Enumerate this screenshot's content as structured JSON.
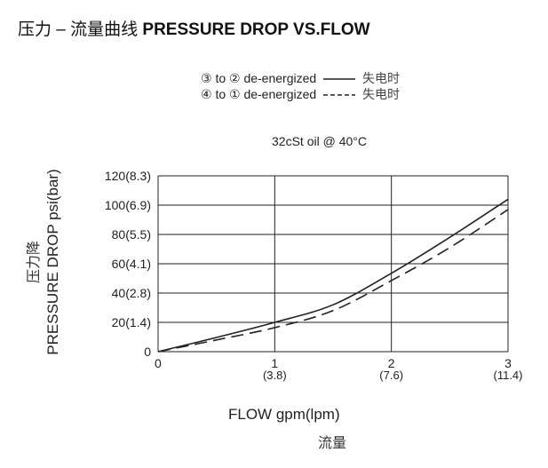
{
  "title": {
    "cn": "压力 – 流量曲线",
    "en": "PRESSURE DROP VS.FLOW"
  },
  "chart_data": {
    "type": "line",
    "title": "PRESSURE DROP VS.FLOW",
    "subtitle": "32cSt  oil @ 40°C",
    "xlabel": "FLOW gpm(lpm)",
    "xlabel_cn": "流量",
    "ylabel": "PRESSURE DROP psi(bar)",
    "ylabel_cn": "压力降",
    "xlim": [
      0,
      3
    ],
    "ylim": [
      0,
      120
    ],
    "grid": true,
    "legend_placement": "top",
    "x_ticks": [
      {
        "value": 0,
        "label": "0",
        "sub": ""
      },
      {
        "value": 1,
        "label": "1",
        "sub": "(3.8)"
      },
      {
        "value": 2,
        "label": "2",
        "sub": "(7.6)"
      },
      {
        "value": 3,
        "label": "3",
        "sub": "(11.4)"
      }
    ],
    "y_ticks": [
      {
        "value": 0,
        "label": "0"
      },
      {
        "value": 20,
        "label": "20(1.4)"
      },
      {
        "value": 40,
        "label": "40(2.8)"
      },
      {
        "value": 60,
        "label": "60(4.1)"
      },
      {
        "value": 80,
        "label": "80(5.5)"
      },
      {
        "value": 100,
        "label": "100(6.9)"
      },
      {
        "value": 120,
        "label": "120(8.3)"
      }
    ],
    "series": [
      {
        "name": "③ to ② de-energized",
        "name_cn": "失电时",
        "style": "solid",
        "x": [
          0,
          0.5,
          1,
          1.5,
          2,
          2.5,
          3
        ],
        "y": [
          0,
          9.7,
          20,
          32,
          53.5,
          78,
          104
        ]
      },
      {
        "name": "④ to ① de-energized",
        "name_cn": "失电时",
        "style": "dashed",
        "x": [
          0,
          0.5,
          1,
          1.5,
          2,
          2.5,
          3
        ],
        "y": [
          0,
          8,
          16.4,
          28,
          48.5,
          71,
          97
        ]
      }
    ]
  }
}
